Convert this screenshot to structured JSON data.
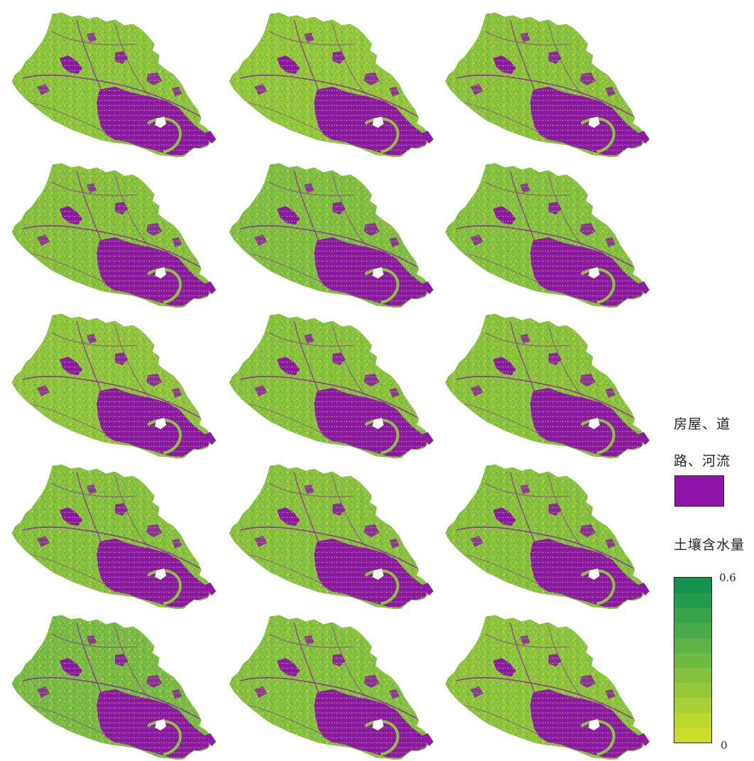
{
  "panels": [
    {
      "variant": 0,
      "green": "#8cc63f"
    },
    {
      "variant": 1,
      "green": "#92c83e"
    },
    {
      "variant": 2,
      "green": "#8ac43e"
    },
    {
      "variant": 3,
      "green": "#86c240"
    },
    {
      "variant": 4,
      "green": "#7ebf44"
    },
    {
      "variant": 5,
      "green": "#84c242"
    },
    {
      "variant": 6,
      "green": "#8fc63f"
    },
    {
      "variant": 7,
      "green": "#88c33f"
    },
    {
      "variant": 8,
      "green": "#8ac43f"
    },
    {
      "variant": 9,
      "green": "#85c240"
    },
    {
      "variant": 10,
      "green": "#87c341"
    },
    {
      "variant": 11,
      "green": "#86c240"
    },
    {
      "variant": 12,
      "green": "#76bc46"
    },
    {
      "variant": 13,
      "green": "#84c241"
    },
    {
      "variant": 14,
      "green": "#8dc53f"
    }
  ],
  "legend": {
    "category_label_line1": "房屋、道",
    "category_label_line2": "路、河流",
    "category_color": "#9013a8",
    "scale_title": "土壤含水量",
    "scale_max": "0.6",
    "scale_min": "0",
    "scale_colors": [
      "#cbdc2a",
      "#bcd72e",
      "#a8cf35",
      "#95c73b",
      "#84c13f",
      "#6fba43",
      "#5cb247",
      "#4aab49",
      "#38a34c",
      "#249b4f",
      "#13924f"
    ]
  },
  "colors": {
    "urban": "#8d19a6",
    "urban_dark": "#6f1a86",
    "dry_yellow": "#c9d92d",
    "moist_green": "#4aa84a"
  }
}
